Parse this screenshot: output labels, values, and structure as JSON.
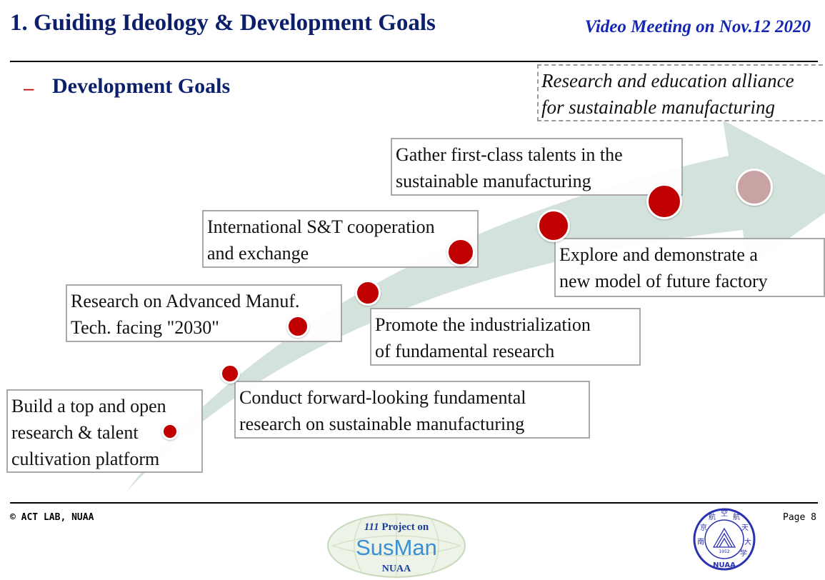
{
  "header": {
    "title": "1. Guiding Ideology & Development Goals",
    "meeting": "Video Meeting on Nov.12 2020"
  },
  "section": {
    "dash": "–",
    "heading": "Development Goals"
  },
  "vision": "Research and education alliance\nfor sustainable manufacturing",
  "steps": [
    "Build a top and open\nresearch & talent\ncultivation platform",
    "Conduct forward-looking fundamental\nresearch on sustainable manufacturing",
    "Research on Advanced Manuf.\nTech. facing \"2030\"",
    "Promote the industrialization\nof fundamental research",
    "International S&T cooperation\nand exchange",
    "Explore and demonstrate a\nnew model of future factory",
    "Gather first-class talents in the\nsustainable manufacturing"
  ],
  "colors": {
    "title": "#0b1f6b",
    "meeting": "#1527b0",
    "accent_dot": "#c00000",
    "final_dot": "#c9a3a3",
    "arrow": "#d3e2da"
  },
  "footer": {
    "copyright": "© ACT LAB, NUAA",
    "page": "Page 8",
    "logo": {
      "line1_num": "111",
      "line1_text": " Project on",
      "brand": "SusMan",
      "org": "NUAA"
    },
    "seal": {
      "chars": [
        "南",
        "京",
        "航",
        "空",
        "航",
        "天",
        "大",
        "学"
      ],
      "year": "1952",
      "abbr": "NUAA"
    }
  }
}
